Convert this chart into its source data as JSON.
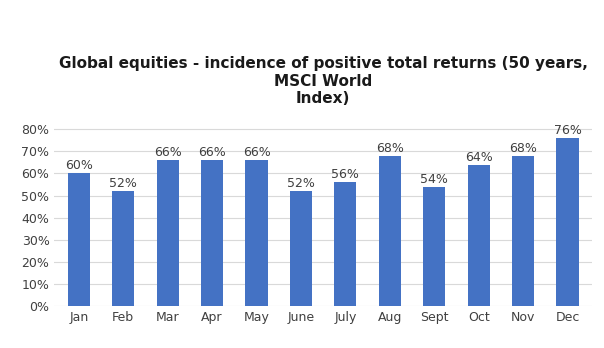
{
  "title": "Global equities - incidence of positive total returns (50 years,\nMSCI World\nIndex)",
  "categories": [
    "Jan",
    "Feb",
    "Mar",
    "Apr",
    "May",
    "June",
    "July",
    "Aug",
    "Sept",
    "Oct",
    "Nov",
    "Dec"
  ],
  "values": [
    0.6,
    0.52,
    0.66,
    0.66,
    0.66,
    0.52,
    0.56,
    0.68,
    0.54,
    0.64,
    0.68,
    0.76
  ],
  "bar_color": "#4472c4",
  "ylim": [
    0,
    0.88
  ],
  "yticks": [
    0.0,
    0.1,
    0.2,
    0.3,
    0.4,
    0.5,
    0.6,
    0.7,
    0.8
  ],
  "ytick_labels": [
    "0%",
    "10%",
    "20%",
    "30%",
    "40%",
    "50%",
    "60%",
    "70%",
    "80%"
  ],
  "background_color": "#ffffff",
  "grid_color": "#d9d9d9",
  "title_fontsize": 11,
  "label_fontsize": 9,
  "tick_fontsize": 9
}
